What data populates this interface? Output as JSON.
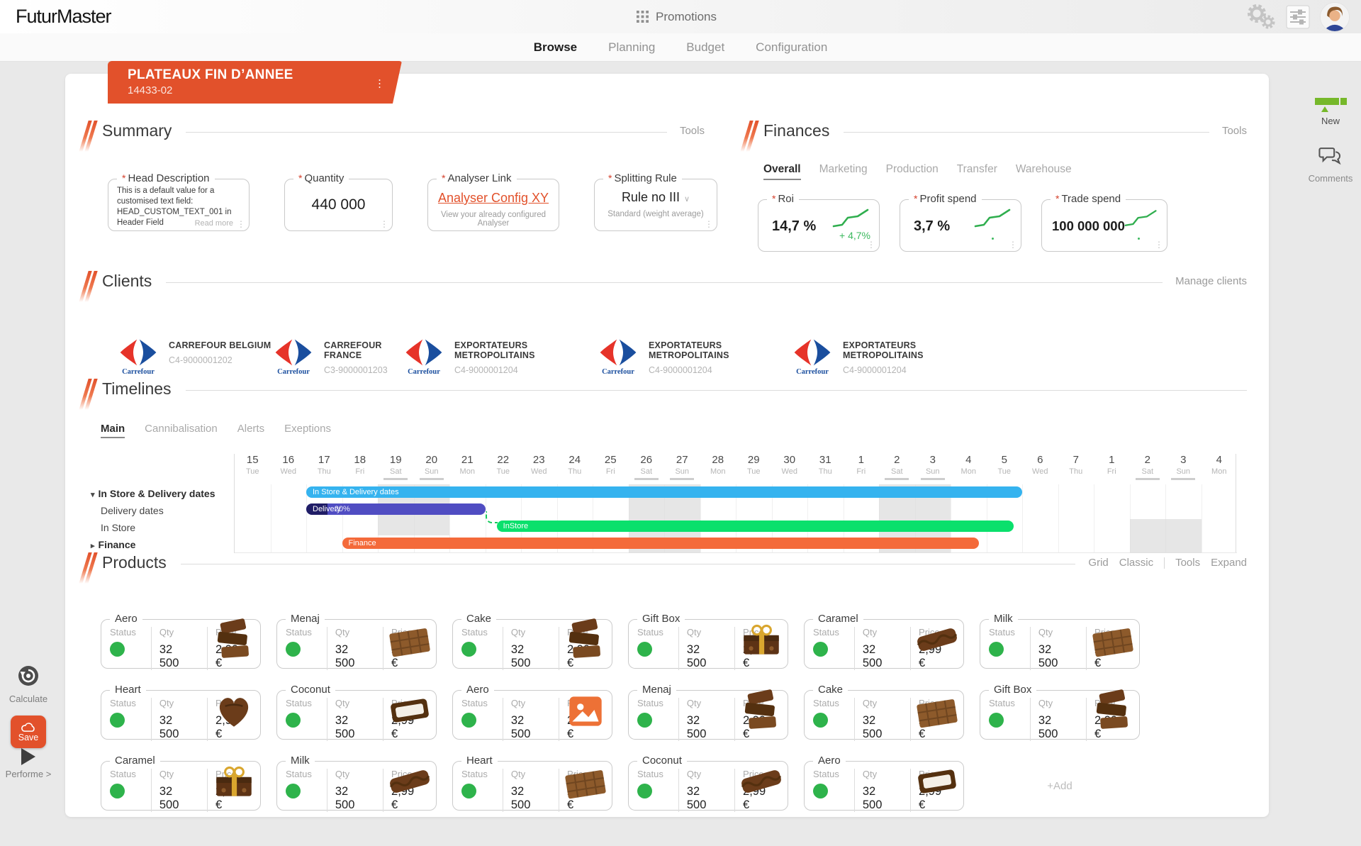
{
  "topbar": {
    "logo": "FuturMaster",
    "app_title": "Promotions"
  },
  "nav": {
    "items": [
      {
        "label": "Browse",
        "active": true
      },
      {
        "label": "Planning",
        "active": false
      },
      {
        "label": "Budget",
        "active": false
      },
      {
        "label": "Configuration",
        "active": false
      }
    ]
  },
  "promo": {
    "title": "PLATEAUX FIN D’ANNEE",
    "code": "14433-02"
  },
  "summary": {
    "title": "Summary",
    "tools_label": "Tools",
    "head_description": {
      "label": "Head Description",
      "value": "This is a default value for a customised text field: HEAD_CUSTOM_TEXT_001 in Header Field",
      "read_more": "Read more"
    },
    "quantity": {
      "label": "Quantity",
      "value": "440 000"
    },
    "analyser_link": {
      "label": "Analyser Link",
      "value": "Analyser Config XY",
      "hint": "View your already configured Analyser"
    },
    "splitting_rule": {
      "label": "Splitting Rule",
      "value": "Rule no III",
      "hint": "Standard (weight average)"
    }
  },
  "finances": {
    "title": "Finances",
    "tools_label": "Tools",
    "tabs": [
      {
        "label": "Overall",
        "active": true
      },
      {
        "label": "Marketing",
        "active": false
      },
      {
        "label": "Production",
        "active": false
      },
      {
        "label": "Transfer",
        "active": false
      },
      {
        "label": "Warehouse",
        "active": false
      }
    ],
    "roi": {
      "label": "Roi",
      "value": "14,7 %",
      "delta": "+ 4,7%"
    },
    "profit_spend": {
      "label": "Profit spend",
      "value": "3,7 %"
    },
    "trade_spend": {
      "label": "Trade spend",
      "value": "100 000 000"
    }
  },
  "clients": {
    "title": "Clients",
    "manage_label": "Manage clients",
    "brand": "Carrefour",
    "items": [
      {
        "name": "CARREFOUR BELGIUM",
        "code": "C4-9000001202",
        "width": "cw-1"
      },
      {
        "name": "CARREFOUR FRANCE",
        "code": "C3-9000001203",
        "width": "cw-2"
      },
      {
        "name": "EXPORTATEURS METROPOLITAINS",
        "code": "C4-9000001204",
        "width": "cw-3"
      },
      {
        "name": "EXPORTATEURS METROPOLITAINS",
        "code": "C4-9000001204",
        "width": "cw-3"
      },
      {
        "name": "EXPORTATEURS METROPOLITAINS",
        "code": "C4-9000001204",
        "width": "cw-3"
      }
    ]
  },
  "timelines": {
    "title": "Timelines",
    "tabs": [
      {
        "label": "Main",
        "active": true
      },
      {
        "label": "Cannibalisation",
        "active": false
      },
      {
        "label": "Alerts",
        "active": false
      },
      {
        "label": "Exeptions",
        "active": false
      }
    ],
    "days": [
      {
        "d": "15",
        "w": "Tue"
      },
      {
        "d": "16",
        "w": "Wed"
      },
      {
        "d": "17",
        "w": "Thu"
      },
      {
        "d": "18",
        "w": "Fri"
      },
      {
        "d": "19",
        "w": "Sat"
      },
      {
        "d": "20",
        "w": "Sun"
      },
      {
        "d": "21",
        "w": "Mon"
      },
      {
        "d": "22",
        "w": "Tue"
      },
      {
        "d": "23",
        "w": "Wed"
      },
      {
        "d": "24",
        "w": "Thu"
      },
      {
        "d": "25",
        "w": "Fri"
      },
      {
        "d": "26",
        "w": "Sat"
      },
      {
        "d": "27",
        "w": "Sun"
      },
      {
        "d": "28",
        "w": "Mon"
      },
      {
        "d": "29",
        "w": "Tue"
      },
      {
        "d": "30",
        "w": "Wed"
      },
      {
        "d": "31",
        "w": "Thu"
      },
      {
        "d": "1",
        "w": "Fri"
      },
      {
        "d": "2",
        "w": "Sat"
      },
      {
        "d": "3",
        "w": "Sun"
      },
      {
        "d": "4",
        "w": "Mon"
      },
      {
        "d": "5",
        "w": "Tue"
      },
      {
        "d": "6",
        "w": "Wed"
      },
      {
        "d": "7",
        "w": "Thu"
      },
      {
        "d": "1",
        "w": "Fri"
      },
      {
        "d": "2",
        "w": "Sat"
      },
      {
        "d": "3",
        "w": "Sun"
      },
      {
        "d": "4",
        "w": "Mon"
      }
    ],
    "rows": [
      {
        "label": "In Store & Delivery dates",
        "bold": true,
        "caret": "▾"
      },
      {
        "label": "Delivery dates",
        "bold": false,
        "caret": ""
      },
      {
        "label": "In Store",
        "bold": false,
        "caret": ""
      },
      {
        "label": "Finance",
        "bold": true,
        "caret": "▸"
      }
    ],
    "bars": {
      "in_store_delivery": {
        "label": "In Store & Delivery dates"
      },
      "delivery": {
        "label": "Delivery",
        "progress": "20%"
      },
      "in_store": {
        "label": "InStore"
      },
      "finance": {
        "label": "Finance"
      }
    }
  },
  "products": {
    "title": "Products",
    "controls": [
      "Grid",
      "Classic",
      "Tools",
      "Expand"
    ],
    "col_labels": {
      "status": "Status",
      "qty": "Qty",
      "price": "Price"
    },
    "add_label": "+Add",
    "cards": [
      {
        "name": "Aero",
        "qty": "32 500",
        "price": "2,99 €",
        "image": "chocolate-chunks"
      },
      {
        "name": "Menaj",
        "qty": "32 500",
        "price": "2,99 €",
        "image": "chocolate-tablet"
      },
      {
        "name": "Cake",
        "qty": "32 500",
        "price": "2,99 €",
        "image": "chocolate-chunks"
      },
      {
        "name": "Gift Box",
        "qty": "32 500",
        "price": "2,99 €",
        "image": "chocolate-gift-box"
      },
      {
        "name": "Caramel",
        "qty": "32 500",
        "price": "2,99 €",
        "image": "chocolate-candy-bar"
      },
      {
        "name": "Milk",
        "qty": "32 500",
        "price": "2,99 €",
        "image": "chocolate-tablet"
      },
      {
        "name": "Heart",
        "qty": "32 500",
        "price": "2,99 €",
        "image": "chocolate-heart"
      },
      {
        "name": "Coconut",
        "qty": "32 500",
        "price": "2,99 €",
        "image": "chocolate-coconut-bar"
      },
      {
        "name": "Aero",
        "qty": "32 500",
        "price": "2,99 €",
        "image": "image-placeholder"
      },
      {
        "name": "Menaj",
        "qty": "32 500",
        "price": "2,99 €",
        "image": "chocolate-chunks"
      },
      {
        "name": "Cake",
        "qty": "32 500",
        "price": "2,99 €",
        "image": "chocolate-tablet"
      },
      {
        "name": "Gift Box",
        "qty": "32 500",
        "price": "2,99 €",
        "image": "chocolate-chunks"
      },
      {
        "name": "Caramel",
        "qty": "32 500",
        "price": "2,99 €",
        "image": "chocolate-gift-box"
      },
      {
        "name": "Milk",
        "qty": "32 500",
        "price": "2,99 €",
        "image": "chocolate-candy-bar"
      },
      {
        "name": "Heart",
        "qty": "32 500",
        "price": "2,99 €",
        "image": "chocolate-tablet"
      },
      {
        "name": "Coconut",
        "qty": "32 500",
        "price": "2,99 €",
        "image": "chocolate-candy-bar"
      },
      {
        "name": "Aero",
        "qty": "32 500",
        "price": "2,99 €",
        "image": "chocolate-coconut-bar"
      }
    ]
  },
  "rail_left": {
    "calculate": "Calculate",
    "save": "Save",
    "performe": "Performe >"
  },
  "rail_right": {
    "new": "New",
    "comments": "Comments"
  },
  "colors": {
    "accent": "#E2512B",
    "green": "#2EB34B",
    "bar_blue": "#35B3EF",
    "bar_indigo": "#504DC2",
    "bar_green": "#0AE06C",
    "bar_orange": "#F46A3A"
  }
}
